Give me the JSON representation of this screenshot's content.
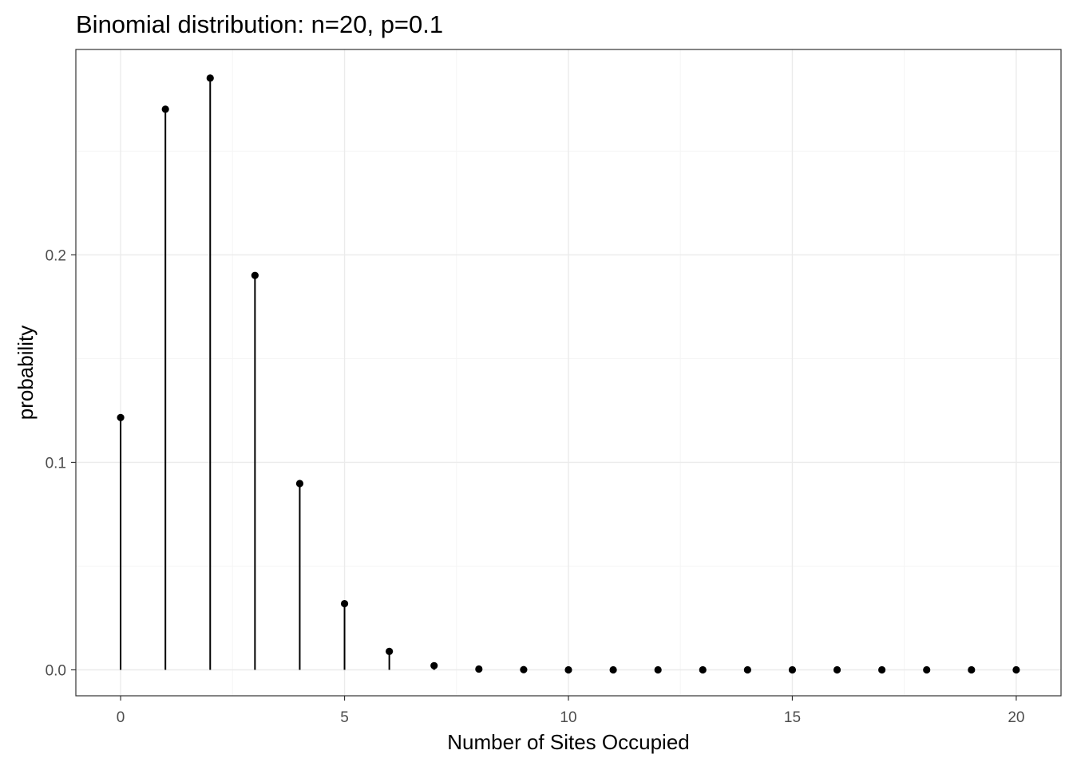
{
  "chart_data": {
    "type": "lollipop",
    "title": "Binomial distribution: n=20, p=0.1",
    "xlabel": "Number of Sites Occupied",
    "ylabel": "probability",
    "x": [
      0,
      1,
      2,
      3,
      4,
      5,
      6,
      7,
      8,
      9,
      10,
      11,
      12,
      13,
      14,
      15,
      16,
      17,
      18,
      19,
      20
    ],
    "y": [
      0.1216,
      0.2702,
      0.2852,
      0.1901,
      0.0898,
      0.0319,
      0.0089,
      0.002,
      0.0004,
      0.0001,
      0.0,
      0.0,
      0.0,
      0.0,
      0.0,
      0.0,
      0.0,
      0.0,
      0.0,
      0.0,
      0.0
    ],
    "xlim": [
      -1,
      21
    ],
    "ylim": [
      -0.0125,
      0.299
    ],
    "x_ticks": [
      0,
      5,
      10,
      15,
      20
    ],
    "x_tick_labels": [
      "0",
      "5",
      "10",
      "15",
      "20"
    ],
    "y_ticks": [
      0.0,
      0.1,
      0.2
    ],
    "y_tick_labels": [
      "0.0",
      "0.1",
      "0.2"
    ],
    "x_minor_ticks": [
      2.5,
      7.5,
      12.5,
      17.5
    ],
    "y_minor_ticks": [
      0.05,
      0.15,
      0.25
    ],
    "grid": true,
    "legend": "none",
    "theme": "bw",
    "colors": {
      "mark": "#000000",
      "grid_major": "#ebebeb",
      "grid_minor": "#f5f5f5",
      "panel_border": "#333333",
      "tick_text": "#4d4d4d"
    }
  }
}
